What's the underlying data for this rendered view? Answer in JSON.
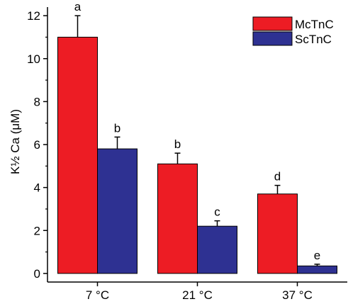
{
  "chart_data": {
    "type": "bar",
    "categories": [
      "7 °C",
      "21 °C",
      "37 °C"
    ],
    "series": [
      {
        "name": "McTnC",
        "color": "#ed1c24",
        "values": [
          11.0,
          5.1,
          3.7
        ],
        "errors": [
          1.0,
          0.5,
          0.4
        ],
        "annotations": [
          "a",
          "b",
          "d"
        ]
      },
      {
        "name": "ScTnC",
        "color": "#2e3192",
        "values": [
          5.8,
          2.2,
          0.35
        ],
        "errors": [
          0.55,
          0.25,
          0.08
        ],
        "annotations": [
          "b",
          "c",
          "e"
        ]
      }
    ],
    "ylabel": "K½ Ca (μM)",
    "ylim": [
      -0.4,
      12.4
    ],
    "yticks": [
      "0",
      "2",
      "4",
      "6",
      "8",
      "10",
      "12"
    ],
    "legend_position": "top-right",
    "grid": false
  }
}
